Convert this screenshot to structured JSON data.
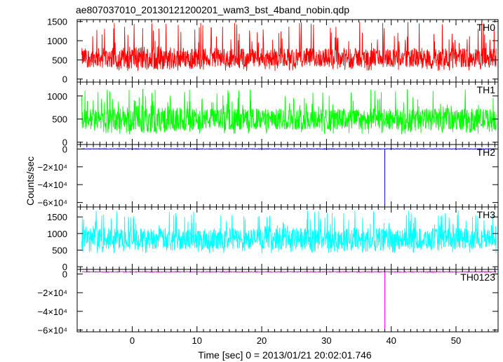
{
  "title": "ae807037010_20130121200201_wam3_bst_4band_nobin.qdp",
  "xlabel": "Time [sec] 0 = 2013/01/21 20:02:01.746",
  "ylabel": "Counts/sec",
  "x_ticks": [
    "0",
    "10",
    "20",
    "30",
    "40",
    "50"
  ],
  "colors": {
    "TH0": "#ff0000",
    "TH1": "#00ff00",
    "TH2": "#0000cc",
    "TH3": "#00ffff",
    "TH0123": "#ff00ff"
  },
  "chart_data": {
    "type": "line",
    "xlim": [
      -8.5,
      56.5
    ],
    "x_ticks": [
      0,
      10,
      20,
      30,
      40,
      50
    ],
    "panels": [
      {
        "name": "TH0",
        "ylim": [
          -80,
          1550
        ],
        "y_ticks": [
          0,
          500,
          1000,
          1500
        ],
        "y_tick_labels": [
          "0",
          "500",
          "1000",
          "1500"
        ],
        "noise": {
          "x_start": -7.8,
          "x_end": 56.2,
          "mean": 560,
          "spread": 250,
          "spike_max": 1500
        }
      },
      {
        "name": "TH1",
        "ylim": [
          -50,
          1300
        ],
        "y_ticks": [
          0,
          500,
          1000
        ],
        "y_tick_labels": [
          "0",
          "500",
          "1000"
        ],
        "noise": {
          "x_start": -7.8,
          "x_end": 56.2,
          "mean": 500,
          "spread": 230,
          "spike_max": 1150
        }
      },
      {
        "name": "TH2",
        "ylim": [
          -65000,
          5000
        ],
        "y_ticks": [
          0,
          -20000,
          -40000,
          -60000
        ],
        "y_tick_labels": [
          "0",
          "−2×10⁴",
          "−4×10⁴",
          "−6×10⁴"
        ],
        "noise": {
          "x_start": -7.8,
          "x_end": 56.2,
          "mean": 100,
          "spread": 300
        },
        "spike": {
          "x": 39.0,
          "y": -62000
        }
      },
      {
        "name": "TH3",
        "ylim": [
          -80,
          1800
        ],
        "y_ticks": [
          0,
          500,
          1000,
          1500
        ],
        "y_tick_labels": [
          "0",
          "500",
          "1000",
          "1500"
        ],
        "noise": {
          "x_start": -7.8,
          "x_end": 56.2,
          "mean": 850,
          "spread": 320,
          "spike_max": 1700
        }
      },
      {
        "name": "TH0123",
        "ylim": [
          -62000,
          5000
        ],
        "y_ticks": [
          0,
          -20000,
          -40000,
          -60000
        ],
        "y_tick_labels": [
          "0",
          "−2×10⁴",
          "−4×10⁴",
          "−6×10⁴"
        ],
        "noise": {
          "x_start": -7.8,
          "x_end": 56.2,
          "mean": 2300,
          "spread": 400
        },
        "spike": {
          "x": 39.0,
          "y": -62000
        }
      }
    ]
  }
}
